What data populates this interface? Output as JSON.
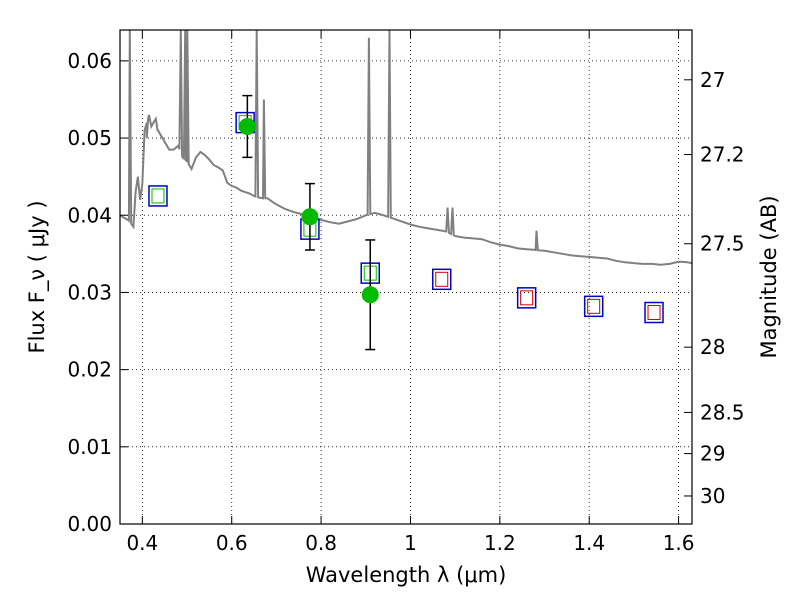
{
  "chart_data": {
    "type": "scatter",
    "xlabel": "Wavelength  λ (μm)",
    "ylabel": "Flux  F_ν ( μJy )",
    "ylabel_right": "Magnitude (AB)",
    "xlim": [
      0.35,
      1.63
    ],
    "ylim": [
      0.0,
      0.064
    ],
    "grid": true,
    "x_ticks": [
      0.4,
      0.6,
      0.8,
      1.0,
      1.2,
      1.4,
      1.6
    ],
    "x_tick_labels": [
      "0.4",
      "0.6",
      "0.8",
      "1",
      "1.2",
      "1.4",
      "1.6"
    ],
    "y_ticks": [
      0.0,
      0.01,
      0.02,
      0.03,
      0.04,
      0.05,
      0.06
    ],
    "y_tick_labels": [
      "0.00",
      "0.01",
      "0.02",
      "0.03",
      "0.04",
      "0.05",
      "0.06"
    ],
    "mag_ticks": [
      27,
      27.2,
      27.5,
      28,
      28.5,
      29,
      30
    ],
    "mag_tick_labels": [
      "27",
      "27.2",
      "27.5",
      "28",
      "28.5",
      "29",
      "30"
    ],
    "colors": {
      "spectrum": "#808080",
      "model_box": "#0000cc",
      "observed": "#00bb00",
      "inner_green": "#00bb00",
      "inner_red": "#cc0000",
      "errorbar": "#000000"
    },
    "series": [
      {
        "kind": "line",
        "points": [
          [
            0.35,
            0.04
          ],
          [
            0.37,
            0.0393
          ],
          [
            0.38,
            0.0385
          ],
          [
            0.385,
            0.043
          ],
          [
            0.39,
            0.045
          ],
          [
            0.395,
            0.042
          ],
          [
            0.4,
            0.044
          ],
          [
            0.405,
            0.051
          ],
          [
            0.41,
            0.052
          ],
          [
            0.415,
            0.053
          ],
          [
            0.42,
            0.0515
          ],
          [
            0.425,
            0.052
          ],
          [
            0.43,
            0.0525
          ],
          [
            0.435,
            0.051
          ],
          [
            0.44,
            0.0505
          ],
          [
            0.45,
            0.0495
          ],
          [
            0.46,
            0.0485
          ],
          [
            0.47,
            0.0485
          ],
          [
            0.48,
            0.049
          ],
          [
            0.49,
            0.0475
          ],
          [
            0.5,
            0.047
          ],
          [
            0.51,
            0.046
          ],
          [
            0.52,
            0.0475
          ],
          [
            0.53,
            0.0482
          ],
          [
            0.54,
            0.0478
          ],
          [
            0.55,
            0.0472
          ],
          [
            0.56,
            0.0465
          ],
          [
            0.57,
            0.0462
          ],
          [
            0.58,
            0.0458
          ],
          [
            0.59,
            0.0442
          ],
          [
            0.6,
            0.0438
          ],
          [
            0.61,
            0.0436
          ],
          [
            0.62,
            0.0432
          ],
          [
            0.63,
            0.043
          ],
          [
            0.64,
            0.0428
          ],
          [
            0.65,
            0.0425
          ],
          [
            0.66,
            0.0423
          ],
          [
            0.67,
            0.0422
          ],
          [
            0.68,
            0.0422
          ],
          [
            0.69,
            0.0418
          ],
          [
            0.7,
            0.0414
          ],
          [
            0.72,
            0.0408
          ],
          [
            0.74,
            0.0404
          ],
          [
            0.76,
            0.0401
          ],
          [
            0.78,
            0.0397
          ],
          [
            0.8,
            0.0394
          ],
          [
            0.82,
            0.0391
          ],
          [
            0.84,
            0.0389
          ],
          [
            0.86,
            0.0392
          ],
          [
            0.88,
            0.0395
          ],
          [
            0.9,
            0.04
          ],
          [
            0.92,
            0.0403
          ],
          [
            0.94,
            0.04
          ],
          [
            0.96,
            0.0396
          ],
          [
            0.98,
            0.0392
          ],
          [
            1.0,
            0.0388
          ],
          [
            1.02,
            0.0385
          ],
          [
            1.04,
            0.0383
          ],
          [
            1.06,
            0.0381
          ],
          [
            1.08,
            0.0379
          ],
          [
            1.1,
            0.0373
          ],
          [
            1.12,
            0.0371
          ],
          [
            1.14,
            0.037
          ],
          [
            1.16,
            0.0369
          ],
          [
            1.18,
            0.0365
          ],
          [
            1.2,
            0.0362
          ],
          [
            1.22,
            0.036
          ],
          [
            1.24,
            0.0357
          ],
          [
            1.26,
            0.0356
          ],
          [
            1.28,
            0.0355
          ],
          [
            1.3,
            0.0354
          ],
          [
            1.32,
            0.0352
          ],
          [
            1.34,
            0.035
          ],
          [
            1.36,
            0.0348
          ],
          [
            1.38,
            0.0347
          ],
          [
            1.4,
            0.0346
          ],
          [
            1.42,
            0.0345
          ],
          [
            1.44,
            0.0344
          ],
          [
            1.46,
            0.0341
          ],
          [
            1.48,
            0.0339
          ],
          [
            1.5,
            0.0338
          ],
          [
            1.52,
            0.0337
          ],
          [
            1.54,
            0.0337
          ],
          [
            1.56,
            0.0336
          ],
          [
            1.58,
            0.0337
          ],
          [
            1.6,
            0.034
          ],
          [
            1.62,
            0.0339
          ],
          [
            1.63,
            0.0338
          ]
        ],
        "emission_lines": [
          {
            "x": 0.372,
            "peak": 0.064
          },
          {
            "x": 0.41,
            "peak": 0.05
          },
          {
            "x": 0.434,
            "peak": 0.051
          },
          {
            "x": 0.486,
            "peak": 0.064
          },
          {
            "x": 0.4959,
            "peak": 0.064
          },
          {
            "x": 0.5007,
            "peak": 0.064
          },
          {
            "x": 0.656,
            "peak": 0.064
          },
          {
            "x": 0.672,
            "peak": 0.055
          },
          {
            "x": 0.907,
            "peak": 0.063
          },
          {
            "x": 0.953,
            "peak": 0.064
          },
          {
            "x": 1.083,
            "peak": 0.041
          },
          {
            "x": 1.094,
            "peak": 0.041
          },
          {
            "x": 1.282,
            "peak": 0.038
          }
        ]
      },
      {
        "kind": "model_boxes",
        "points": [
          {
            "x": 0.435,
            "y": 0.0425,
            "inner": "green"
          },
          {
            "x": 0.63,
            "y": 0.052,
            "inner": "green"
          },
          {
            "x": 0.775,
            "y": 0.0382,
            "inner": "green"
          },
          {
            "x": 0.91,
            "y": 0.0325,
            "inner": "green"
          },
          {
            "x": 1.07,
            "y": 0.0317,
            "inner": "red"
          },
          {
            "x": 1.26,
            "y": 0.0293,
            "inner": "red"
          },
          {
            "x": 1.41,
            "y": 0.0282,
            "inner": "red"
          },
          {
            "x": 1.545,
            "y": 0.0274,
            "inner": "red"
          }
        ]
      },
      {
        "kind": "observed",
        "points": [
          {
            "x": 0.635,
            "y": 0.0515,
            "err": 0.004
          },
          {
            "x": 0.775,
            "y": 0.0398,
            "err": 0.0043
          },
          {
            "x": 0.91,
            "y": 0.0297,
            "err": 0.0071
          }
        ]
      }
    ]
  }
}
